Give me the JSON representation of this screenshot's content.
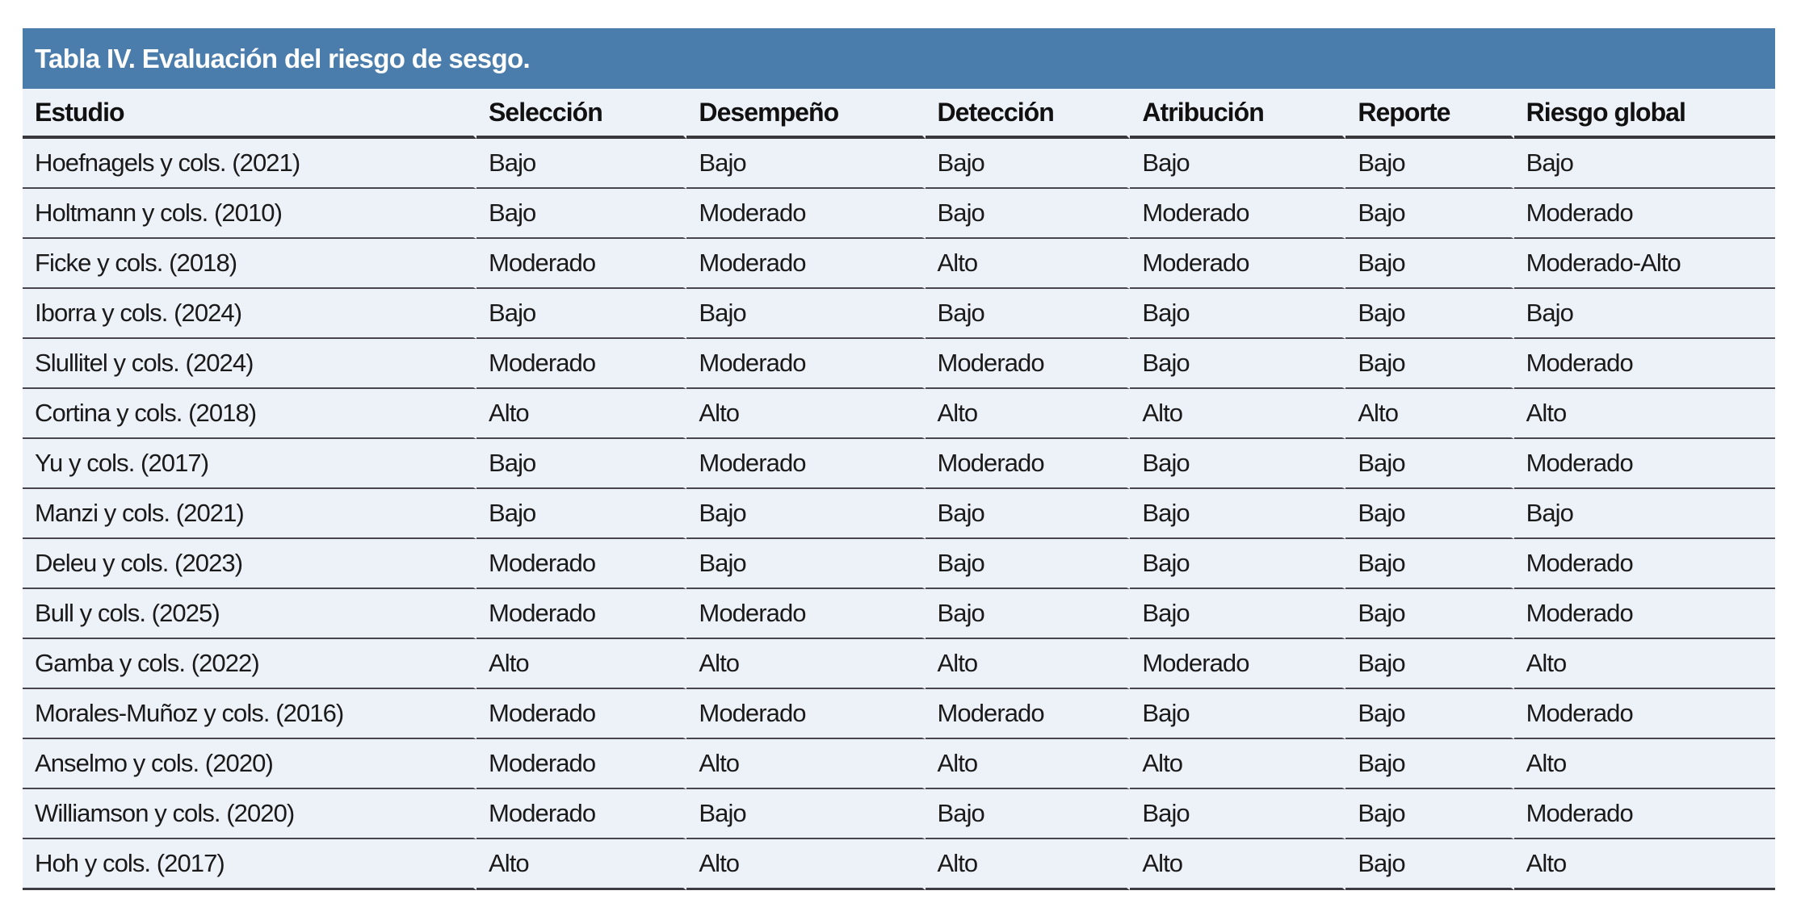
{
  "colors": {
    "title_bar": "#4b7dac",
    "body_bg": "#edf1f8",
    "rule": "#46464c",
    "title_text": "#ffffff"
  },
  "table": {
    "title": "Tabla IV. Evaluación del riesgo de sesgo.",
    "columns": [
      "Estudio",
      "Selección",
      "Desempeño",
      "Detección",
      "Atribución",
      "Reporte",
      "Riesgo global"
    ],
    "rows": [
      [
        "Hoefnagels y cols. (2021)",
        "Bajo",
        "Bajo",
        "Bajo",
        "Bajo",
        "Bajo",
        "Bajo"
      ],
      [
        "Holtmann y cols. (2010)",
        "Bajo",
        "Moderado",
        "Bajo",
        "Moderado",
        "Bajo",
        "Moderado"
      ],
      [
        "Ficke y cols. (2018)",
        "Moderado",
        "Moderado",
        "Alto",
        "Moderado",
        "Bajo",
        "Moderado-Alto"
      ],
      [
        "Iborra y cols. (2024)",
        "Bajo",
        "Bajo",
        "Bajo",
        "Bajo",
        "Bajo",
        "Bajo"
      ],
      [
        "Slullitel y cols. (2024)",
        "Moderado",
        "Moderado",
        "Moderado",
        "Bajo",
        "Bajo",
        "Moderado"
      ],
      [
        "Cortina y cols. (2018)",
        "Alto",
        "Alto",
        "Alto",
        "Alto",
        "Alto",
        "Alto"
      ],
      [
        "Yu y cols. (2017)",
        "Bajo",
        "Moderado",
        "Moderado",
        "Bajo",
        "Bajo",
        "Moderado"
      ],
      [
        "Manzi y cols. (2021)",
        "Bajo",
        "Bajo",
        "Bajo",
        "Bajo",
        "Bajo",
        "Bajo"
      ],
      [
        "Deleu y cols. (2023)",
        "Moderado",
        "Bajo",
        "Bajo",
        "Bajo",
        "Bajo",
        "Moderado"
      ],
      [
        "Bull y cols. (2025)",
        "Moderado",
        "Moderado",
        "Bajo",
        "Bajo",
        "Bajo",
        "Moderado"
      ],
      [
        "Gamba y cols. (2022)",
        "Alto",
        "Alto",
        "Alto",
        "Moderado",
        "Bajo",
        "Alto"
      ],
      [
        "Morales-Muñoz y cols. (2016)",
        "Moderado",
        "Moderado",
        "Moderado",
        "Bajo",
        "Bajo",
        "Moderado"
      ],
      [
        "Anselmo y cols. (2020)",
        "Moderado",
        "Alto",
        "Alto",
        "Alto",
        "Bajo",
        "Alto"
      ],
      [
        "Williamson y cols. (2020)",
        "Moderado",
        "Bajo",
        "Bajo",
        "Bajo",
        "Bajo",
        "Moderado"
      ],
      [
        "Hoh y cols. (2017)",
        "Alto",
        "Alto",
        "Alto",
        "Alto",
        "Bajo",
        "Alto"
      ]
    ]
  }
}
